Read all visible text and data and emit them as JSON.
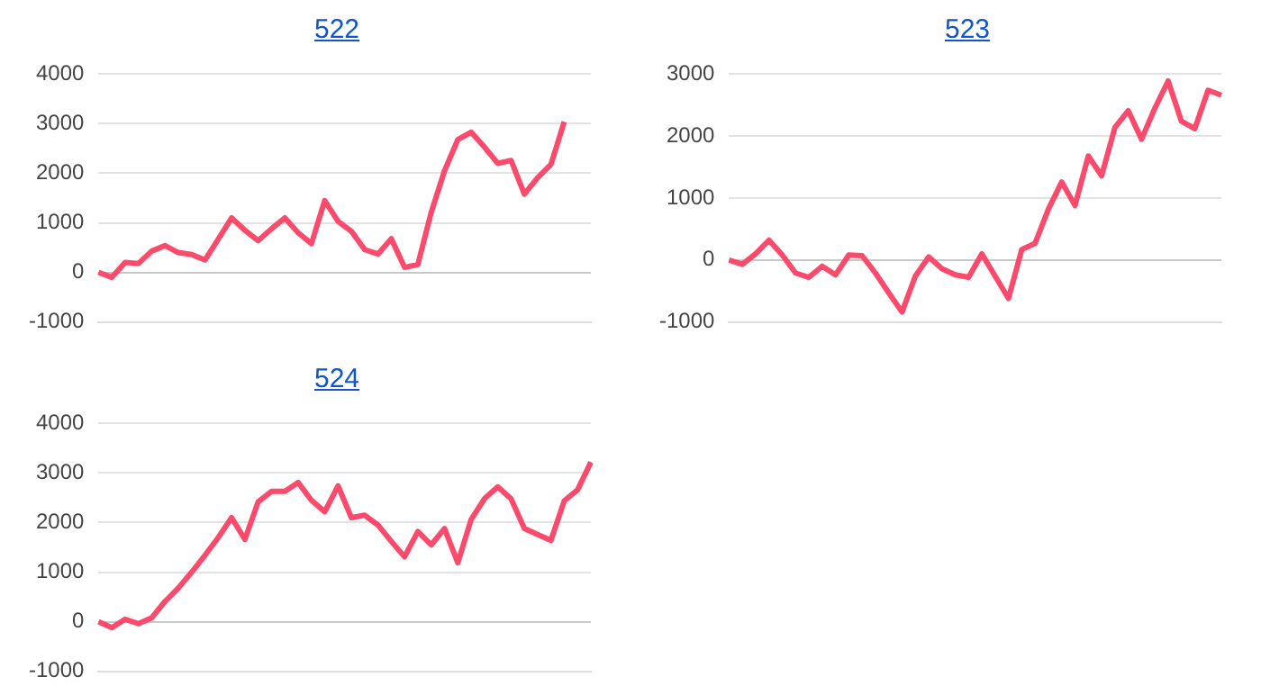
{
  "chart_data": [
    {
      "type": "line",
      "title": "522",
      "categories": [
        null,
        null,
        null,
        null,
        null,
        null,
        null,
        null,
        null,
        null,
        null,
        null,
        null,
        null,
        null,
        null,
        null,
        null,
        null,
        null,
        null,
        null,
        null,
        null,
        null,
        null,
        null,
        null,
        null,
        null,
        null,
        null,
        null,
        null,
        null,
        null,
        null,
        null
      ],
      "series": [
        {
          "color": "#fb4a6b",
          "values": [
            0,
            -100,
            200,
            180,
            430,
            540,
            400,
            360,
            250,
            670,
            1100,
            850,
            640,
            880,
            1100,
            800,
            580,
            1450,
            1030,
            830,
            460,
            370,
            680,
            100,
            160,
            1210,
            2050,
            2680,
            2830,
            2530,
            2200,
            2260,
            1580,
            1910,
            2180,
            3040,
            null,
            null
          ]
        }
      ],
      "ylim": [
        -1000,
        4000
      ],
      "yticks": [
        -1000,
        0,
        1000,
        2000,
        3000,
        4000
      ],
      "grid": "y",
      "tick_labels": "y",
      "legend": false,
      "marker": "none"
    },
    {
      "type": "line",
      "title": "523",
      "categories": [
        null,
        null,
        null,
        null,
        null,
        null,
        null,
        null,
        null,
        null,
        null,
        null,
        null,
        null,
        null,
        null,
        null,
        null,
        null,
        null,
        null,
        null,
        null,
        null,
        null,
        null,
        null,
        null,
        null,
        null,
        null,
        null,
        null,
        null,
        null,
        null,
        null,
        null
      ],
      "series": [
        {
          "color": "#fb4a6b",
          "values": [
            0,
            -70,
            100,
            320,
            80,
            -210,
            -280,
            -100,
            -240,
            80,
            70,
            -210,
            -530,
            -840,
            -260,
            50,
            -140,
            -240,
            -280,
            100,
            -260,
            -620,
            170,
            270,
            820,
            1260,
            880,
            1680,
            1360,
            2140,
            2410,
            1950,
            2450,
            2890,
            2240,
            2120,
            2740,
            2660
          ]
        }
      ],
      "ylim": [
        -1000,
        3000
      ],
      "yticks": [
        -1000,
        0,
        1000,
        2000,
        3000
      ],
      "grid": "y",
      "tick_labels": "y",
      "legend": false,
      "marker": "none"
    },
    {
      "type": "line",
      "title": "524",
      "categories": [
        null,
        null,
        null,
        null,
        null,
        null,
        null,
        null,
        null,
        null,
        null,
        null,
        null,
        null,
        null,
        null,
        null,
        null,
        null,
        null,
        null,
        null,
        null,
        null,
        null,
        null,
        null,
        null,
        null,
        null,
        null,
        null,
        null,
        null,
        null,
        null,
        null,
        null
      ],
      "series": [
        {
          "color": "#fb4a6b",
          "values": [
            0,
            -120,
            50,
            -40,
            80,
            410,
            680,
            1000,
            1340,
            1700,
            2100,
            1660,
            2420,
            2630,
            2630,
            2810,
            2450,
            2220,
            2740,
            2100,
            2150,
            1950,
            1620,
            1310,
            1820,
            1550,
            1880,
            1190,
            2060,
            2480,
            2720,
            2480,
            1880,
            1760,
            1640,
            2440,
            2660,
            3220
          ]
        }
      ],
      "ylim": [
        -1000,
        4000
      ],
      "yticks": [
        -1000,
        0,
        1000,
        2000,
        3000,
        4000
      ],
      "grid": "y",
      "tick_labels": "y",
      "legend": false,
      "marker": "none"
    }
  ]
}
